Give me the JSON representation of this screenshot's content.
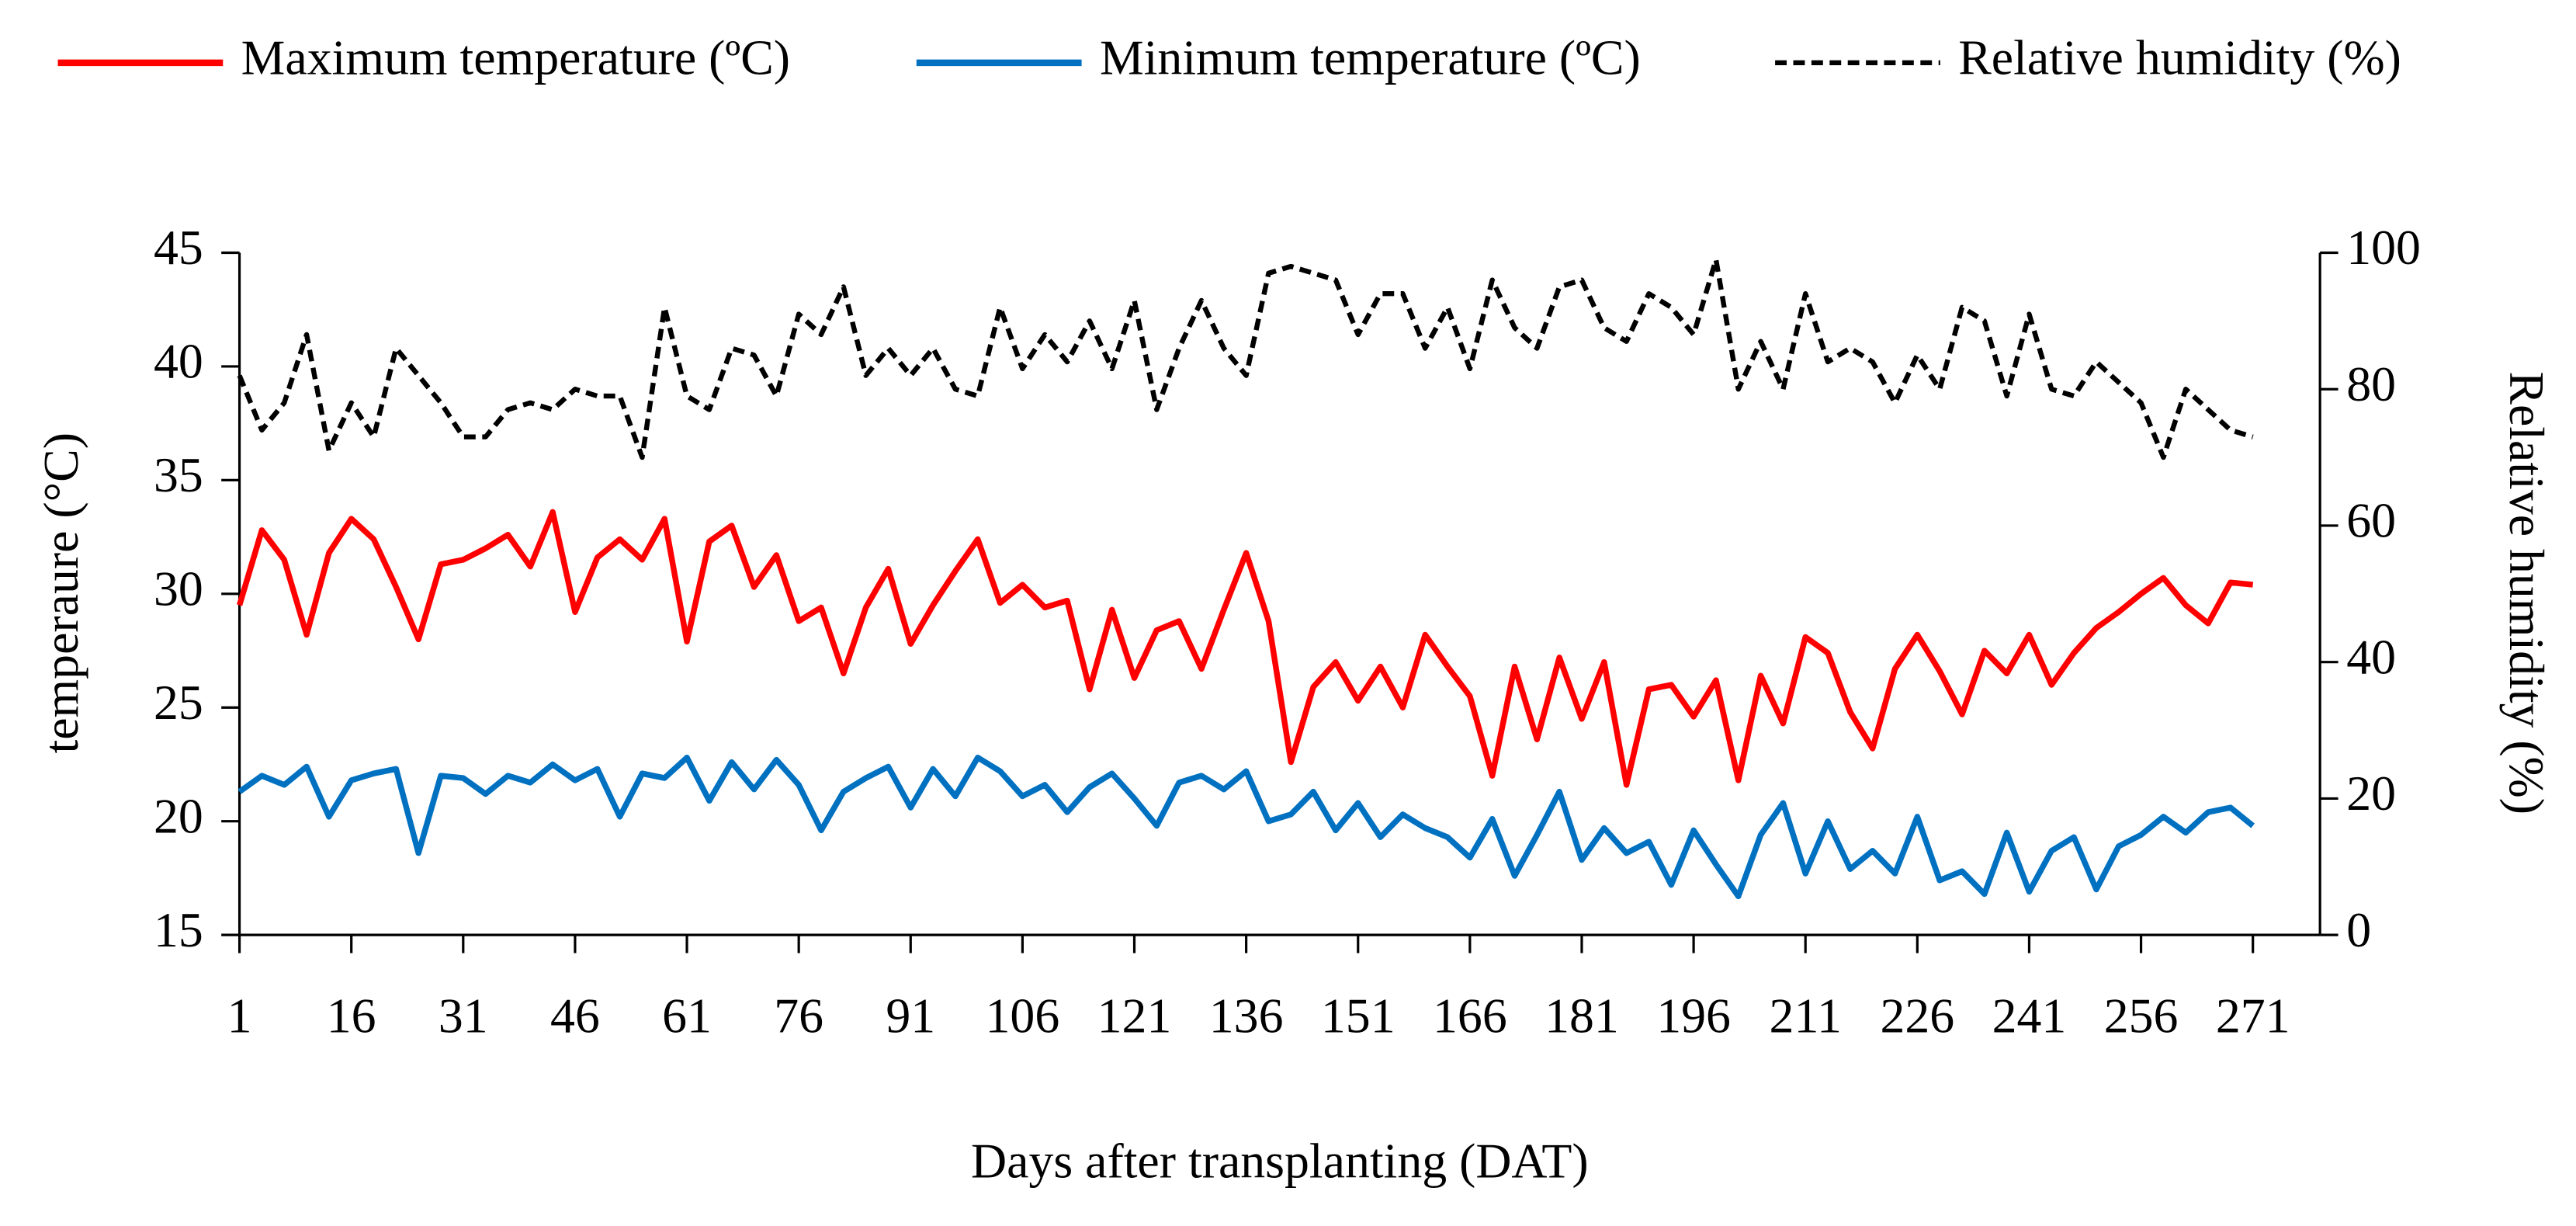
{
  "chart_data": {
    "type": "line",
    "x_label": "Days after transplanting (DAT)",
    "y_label": "temperaure (°C)",
    "y2_label": "Relative humidity (%)",
    "legend": "top",
    "x": [
      1,
      4,
      7,
      10,
      13,
      16,
      19,
      22,
      25,
      28,
      31,
      34,
      37,
      40,
      43,
      46,
      49,
      52,
      55,
      58,
      61,
      64,
      67,
      70,
      73,
      76,
      79,
      82,
      85,
      88,
      91,
      94,
      97,
      100,
      103,
      106,
      109,
      112,
      115,
      118,
      121,
      124,
      127,
      130,
      133,
      136,
      139,
      142,
      145,
      148,
      151,
      154,
      157,
      160,
      163,
      166,
      169,
      172,
      175,
      178,
      181,
      184,
      187,
      190,
      193,
      196,
      199,
      202,
      205,
      208,
      211,
      214,
      217,
      220,
      223,
      226,
      229,
      232,
      235,
      238,
      241,
      244,
      247,
      250,
      253,
      256,
      259,
      262,
      265,
      268,
      271
    ],
    "series": [
      {
        "name": "Maximum temperature (ºC)",
        "color": "#ff0000",
        "dashed": false,
        "axis": "y",
        "values": [
          29.5,
          32.8,
          31.5,
          28.2,
          31.8,
          33.3,
          32.4,
          30.3,
          28.0,
          31.3,
          31.5,
          32.0,
          32.6,
          31.2,
          33.6,
          29.2,
          31.6,
          32.4,
          31.5,
          33.3,
          27.9,
          32.3,
          33.0,
          30.3,
          31.7,
          28.8,
          29.4,
          26.5,
          29.4,
          31.1,
          27.8,
          29.5,
          31.0,
          32.4,
          29.6,
          30.4,
          29.4,
          29.7,
          25.8,
          29.3,
          26.3,
          28.4,
          28.8,
          26.7,
          29.3,
          31.8,
          28.8,
          22.6,
          25.9,
          27.0,
          25.3,
          26.8,
          25.0,
          28.2,
          26.8,
          25.5,
          22.0,
          26.8,
          23.6,
          27.2,
          24.5,
          27.0,
          21.6,
          25.8,
          26.0,
          24.6,
          26.2,
          21.8,
          26.4,
          24.3,
          28.1,
          27.4,
          24.8,
          23.2,
          26.7,
          28.2,
          26.6,
          24.7,
          27.5,
          26.5,
          28.2,
          26.0,
          27.4,
          28.5,
          29.2,
          30.0,
          30.7,
          29.5,
          28.7,
          30.5,
          30.4
        ]
      },
      {
        "name": "Minimum temperature (ºC)",
        "color": "#0070c0",
        "dashed": false,
        "axis": "y",
        "values": [
          21.3,
          22.0,
          21.6,
          22.4,
          20.2,
          21.8,
          22.1,
          22.3,
          18.6,
          22.0,
          21.9,
          21.2,
          22.0,
          21.7,
          22.5,
          21.8,
          22.3,
          20.2,
          22.1,
          21.9,
          22.8,
          20.9,
          22.6,
          21.4,
          22.7,
          21.6,
          19.6,
          21.3,
          21.9,
          22.4,
          20.6,
          22.3,
          21.1,
          22.8,
          22.2,
          21.1,
          21.6,
          20.4,
          21.5,
          22.1,
          21.0,
          19.8,
          21.7,
          22.0,
          21.4,
          22.2,
          20.0,
          20.3,
          21.3,
          19.6,
          20.8,
          19.3,
          20.3,
          19.7,
          19.3,
          18.4,
          20.1,
          17.6,
          19.4,
          21.3,
          18.3,
          19.7,
          18.6,
          19.1,
          17.2,
          19.6,
          18.1,
          16.7,
          19.4,
          20.8,
          17.7,
          20.0,
          17.9,
          18.7,
          17.7,
          20.2,
          17.4,
          17.8,
          16.8,
          19.5,
          16.9,
          18.7,
          19.3,
          17.0,
          18.9,
          19.4,
          20.2,
          19.5,
          20.4,
          20.6,
          19.8
        ]
      },
      {
        "name": "Relative humidity (%)",
        "color": "#000000",
        "dashed": true,
        "axis": "y2",
        "values": [
          82,
          74,
          78,
          88,
          71,
          78,
          73,
          86,
          82,
          78,
          73,
          73,
          77,
          78,
          77,
          80,
          79,
          79,
          70,
          92,
          79,
          77,
          86,
          85,
          79,
          91,
          88,
          95,
          82,
          86,
          82,
          86,
          80,
          79,
          92,
          83,
          88,
          84,
          90,
          83,
          93,
          77,
          86,
          93,
          86,
          82,
          97,
          98,
          97,
          96,
          88,
          94,
          94,
          86,
          92,
          83,
          96,
          89,
          86,
          95,
          96,
          89,
          87,
          94,
          92,
          88,
          99,
          80,
          87,
          80,
          94,
          84,
          86,
          84,
          78,
          85,
          80,
          92,
          90,
          79,
          91,
          80,
          79,
          84,
          81,
          78,
          70,
          80,
          77,
          74,
          73
        ]
      }
    ],
    "xlim": [
      1,
      280
    ],
    "xticks": [
      1,
      16,
      31,
      46,
      61,
      76,
      91,
      106,
      121,
      136,
      151,
      166,
      181,
      196,
      211,
      226,
      241,
      256,
      271
    ],
    "ylim": [
      15,
      45
    ],
    "yticks": [
      15,
      20,
      25,
      30,
      35,
      40,
      45
    ],
    "y2lim": [
      0,
      100
    ],
    "y2ticks": [
      0,
      20,
      40,
      60,
      80,
      100
    ]
  }
}
